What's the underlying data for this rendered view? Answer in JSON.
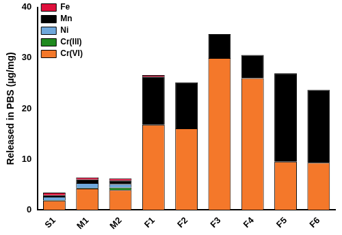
{
  "chart_data": {
    "type": "bar",
    "y_label": "Released in PBS (µg/mg)",
    "categories": [
      "S1",
      "M1",
      "M2",
      "F1",
      "F2",
      "F3",
      "F4",
      "F5",
      "F6"
    ],
    "series": [
      {
        "name": "Cr(VI)",
        "color": "#f4782a",
        "values": [
          1.8,
          4.2,
          3.9,
          16.8,
          16.1,
          30.0,
          26.0,
          9.5,
          9.3
        ]
      },
      {
        "name": "Cr(III)",
        "color": "#1f8a1f",
        "values": [
          0.1,
          0.1,
          0.5,
          0,
          0,
          0,
          0,
          0,
          0
        ]
      },
      {
        "name": "Ni",
        "color": "#6fa8dc",
        "values": [
          0.7,
          1.0,
          0.7,
          0,
          0,
          0,
          0,
          0,
          0
        ]
      },
      {
        "name": "Mn",
        "color": "#000000",
        "values": [
          0.3,
          0.7,
          0.7,
          9.5,
          9.1,
          4.7,
          4.6,
          17.5,
          14.4
        ]
      },
      {
        "name": "Fe",
        "color": "#e0103c",
        "values": [
          0.5,
          0.4,
          0.4,
          0.3,
          0,
          0,
          0,
          0,
          0
        ]
      }
    ],
    "ylim": [
      0,
      40
    ],
    "yticks": [
      0,
      10,
      20,
      30,
      40
    ],
    "stacked": true,
    "grid": false,
    "legend": "top-left"
  }
}
